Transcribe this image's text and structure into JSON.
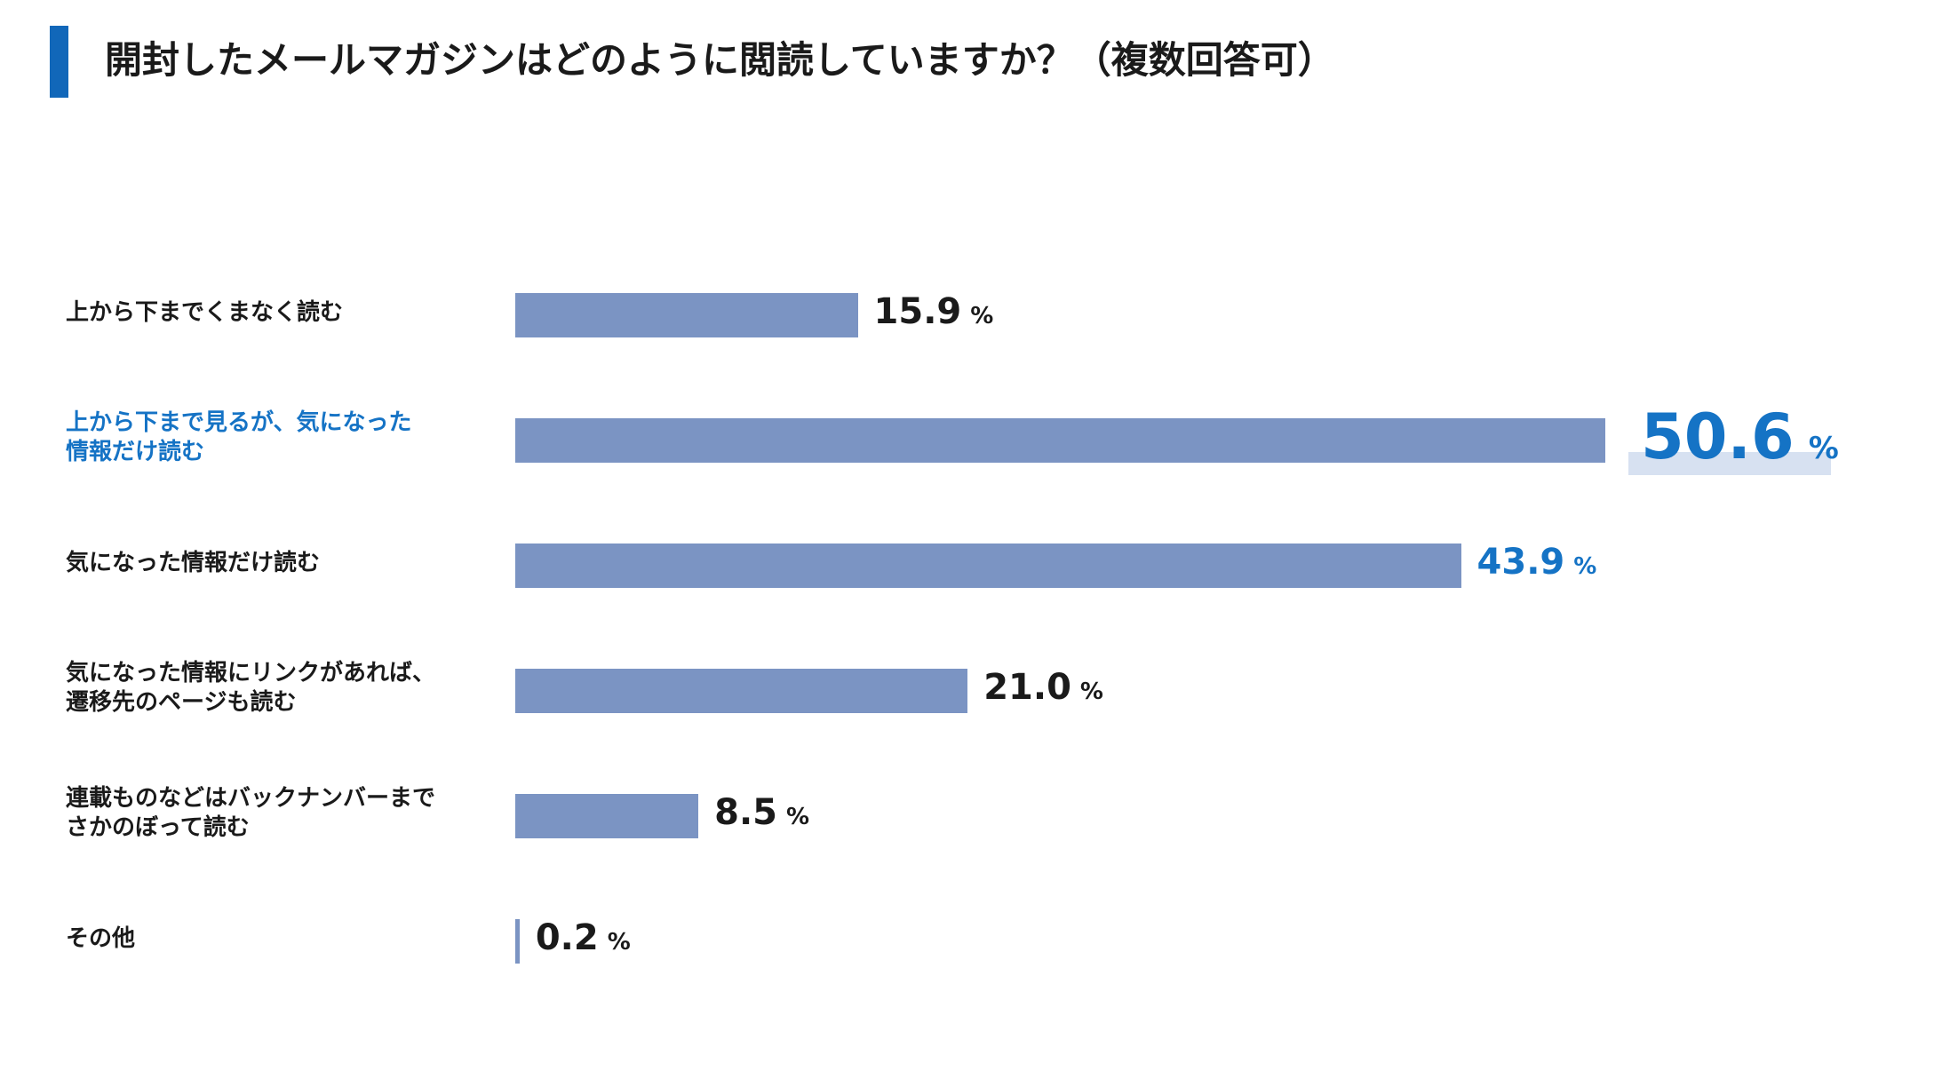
{
  "title": "開封したメールマガジンはどのように閲読していますか？（複数回答可）",
  "colors": {
    "accent": "#1167b9",
    "bar": "#7b94c3",
    "highlight_text": "#1573c5",
    "highlight_box": "#d7e1f1"
  },
  "chart_data": {
    "type": "bar",
    "orientation": "horizontal",
    "title": "開封したメールマガジンはどのように閲読していますか？（複数回答可）",
    "unit": "%",
    "xlim": [
      0,
      100
    ],
    "grid": false,
    "categories": [
      "上から下までくまなく読む",
      "上から下まで見るが、気になった\n情報だけ読む",
      "気になった情報だけ読む",
      "気になった情報にリンクがあれば、\n遷移先のページも読む",
      "連載ものなどはバックナンバーまで\nさかのぼって読む",
      "その他"
    ],
    "values": [
      15.9,
      50.6,
      43.9,
      21.0,
      8.5,
      0.2
    ],
    "value_labels": [
      "15.9",
      "50.6",
      "43.9",
      "21.0",
      "8.5",
      "0.2"
    ],
    "highlighted": [
      false,
      true,
      true,
      false,
      false,
      false
    ],
    "label_highlighted": [
      false,
      true,
      false,
      false,
      false,
      false
    ],
    "emphasized": [
      false,
      true,
      false,
      false,
      false,
      false
    ]
  }
}
